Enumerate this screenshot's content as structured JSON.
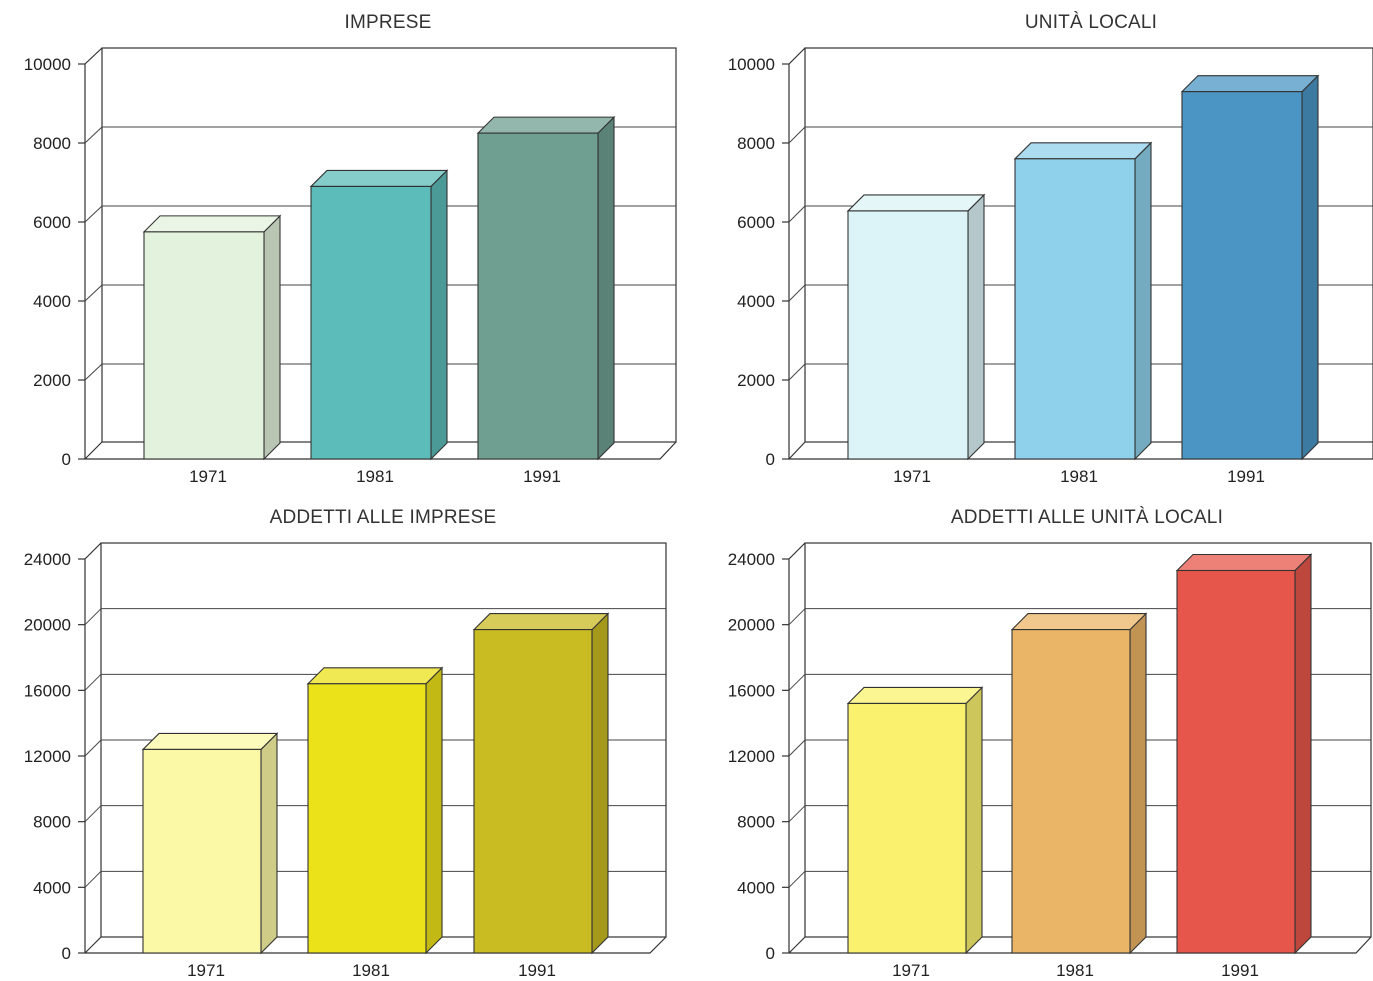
{
  "chart_data": [
    {
      "type": "bar",
      "title": "IMPRESE",
      "categories": [
        "1971",
        "1981",
        "1991"
      ],
      "values": [
        5750,
        6900,
        8250
      ],
      "ylim": [
        0,
        10000
      ],
      "yticks": [
        0,
        2000,
        4000,
        6000,
        8000,
        10000
      ],
      "grid": true,
      "colors": [
        "#e3f2dc",
        "#5bbcb9",
        "#6f9f90"
      ]
    },
    {
      "type": "bar",
      "title": "UNITÀ LOCALI",
      "categories": [
        "1971",
        "1981",
        "1991"
      ],
      "values": [
        6280,
        7600,
        9300
      ],
      "ylim": [
        0,
        10000
      ],
      "yticks": [
        0,
        2000,
        4000,
        6000,
        8000,
        10000
      ],
      "grid": true,
      "colors": [
        "#dcf3f7",
        "#8fd0ea",
        "#4a95c4"
      ]
    },
    {
      "type": "bar",
      "title": "ADDETTI ALLE IMPRESE",
      "categories": [
        "1971",
        "1981",
        "1991"
      ],
      "values": [
        12400,
        16400,
        19700
      ],
      "ylim": [
        0,
        24000
      ],
      "yticks": [
        0,
        4000,
        8000,
        12000,
        16000,
        20000,
        24000
      ],
      "grid": true,
      "colors": [
        "#fcf9a6",
        "#ece21a",
        "#c9bb22"
      ]
    },
    {
      "type": "bar",
      "title": "ADDETTI ALLE UNITÀ LOCALI",
      "categories": [
        "1971",
        "1981",
        "1991"
      ],
      "values": [
        15200,
        19700,
        23300
      ],
      "ylim": [
        0,
        24000
      ],
      "yticks": [
        0,
        4000,
        8000,
        12000,
        16000,
        20000,
        24000
      ],
      "grid": true,
      "colors": [
        "#faf26e",
        "#ebb567",
        "#e7564a"
      ]
    }
  ]
}
